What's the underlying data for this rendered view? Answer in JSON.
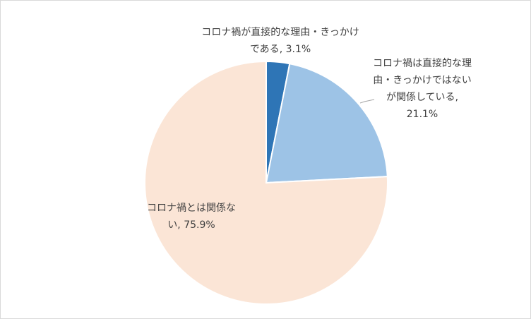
{
  "chart_data": {
    "type": "pie",
    "categories": [
      "コロナ禍が直接的な理由・きっかけである",
      "コロナ禍は直接的な理由・きっかけではないが関係している",
      "コロナ禍とは関係ない"
    ],
    "values": [
      3.1,
      21.1,
      75.9
    ],
    "value_labels": [
      "3.1%",
      "21.1%",
      "75.9%"
    ],
    "label_separator": ",",
    "colors": [
      "#2e75b6",
      "#9dc3e6",
      "#fbe5d6"
    ]
  }
}
